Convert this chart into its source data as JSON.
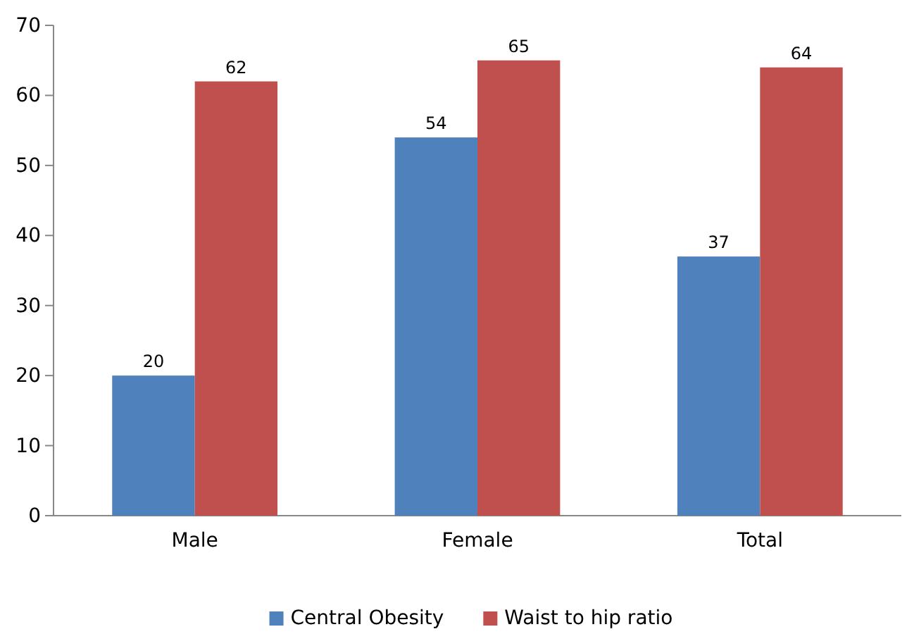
{
  "chart_data": {
    "type": "bar",
    "categories": [
      "Male",
      "Female",
      "Total"
    ],
    "series": [
      {
        "name": "Central Obesity",
        "color": "#4f81bd",
        "values": [
          20,
          54,
          37
        ]
      },
      {
        "name": "Waist to hip ratio",
        "color": "#c0504d",
        "values": [
          62,
          65,
          64
        ]
      }
    ],
    "ylim": [
      0,
      70
    ],
    "yticks": [
      0,
      10,
      20,
      30,
      40,
      50,
      60,
      70
    ],
    "data_labels": true,
    "legend": "bottom",
    "grid": false
  }
}
